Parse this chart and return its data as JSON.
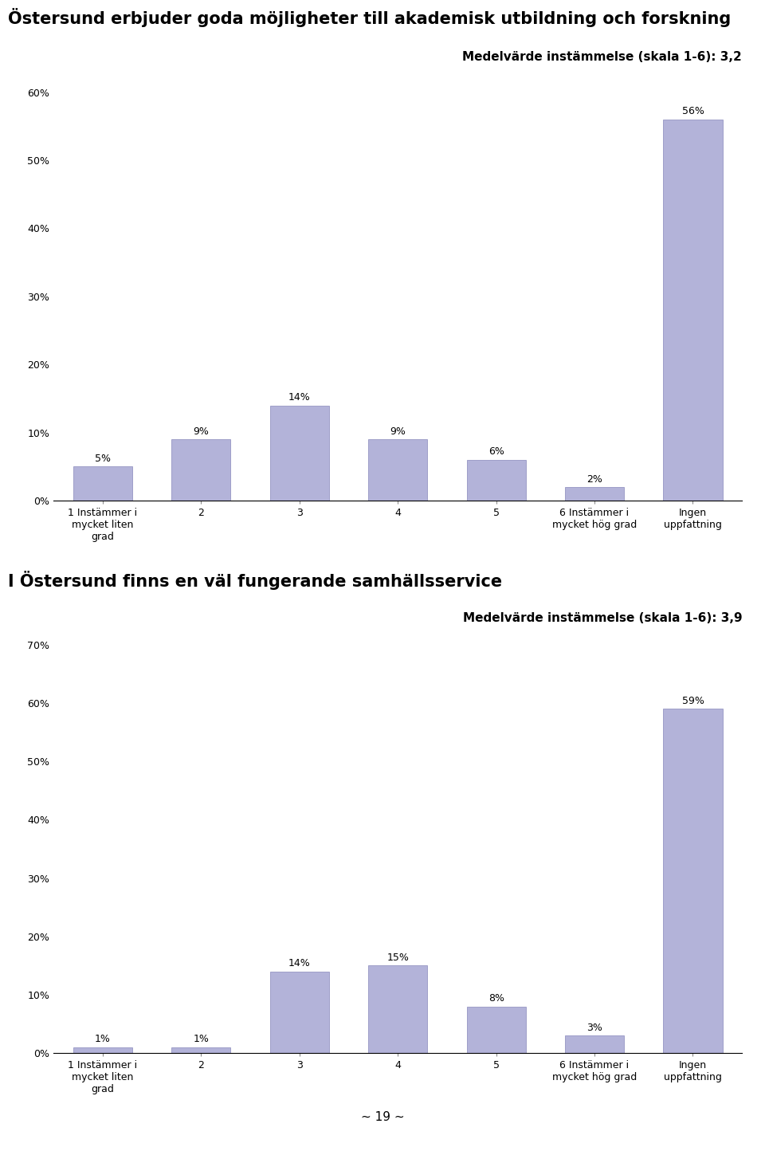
{
  "chart1_title": "Östersund erbjuder goda möjligheter till akademisk utbildning och forskning",
  "chart1_subtitle": "Medelvärde instämmelse (skala 1-6): 3,2",
  "chart1_values": [
    5,
    9,
    14,
    9,
    6,
    2,
    56
  ],
  "chart1_ylim": [
    0,
    60
  ],
  "chart1_yticks": [
    0,
    10,
    20,
    30,
    40,
    50,
    60
  ],
  "chart2_title": "I Östersund finns en väl fungerande samhällsservice",
  "chart2_subtitle": "Medelvärde instämmelse (skala 1-6): 3,9",
  "chart2_values": [
    1,
    1,
    14,
    15,
    8,
    3,
    59
  ],
  "chart2_ylim": [
    0,
    70
  ],
  "chart2_yticks": [
    0,
    10,
    20,
    30,
    40,
    50,
    60,
    70
  ],
  "categories": [
    "1 Instämmer i\nmycket liten\ngrad",
    "2",
    "3",
    "4",
    "5",
    "6 Instämmer i\nmycket hög grad",
    "Ingen\nuppfattning"
  ],
  "bar_color": "#b3b3d9",
  "bar_edge_color": "#8888bb",
  "background_color": "#ffffff",
  "title_fontsize": 15,
  "subtitle_fontsize": 11,
  "tick_fontsize": 9,
  "bar_label_fontsize": 9,
  "page_number": "~ 19 ~"
}
